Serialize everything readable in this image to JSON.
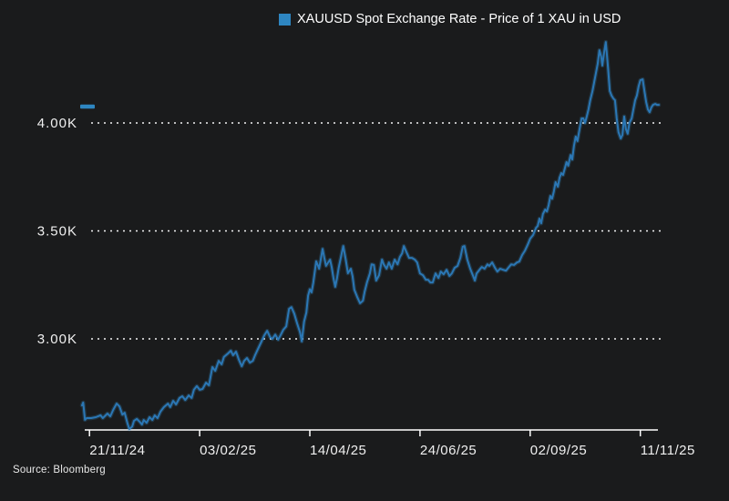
{
  "legend": {
    "label": "XAUUSD Spot Exchange Rate - Price of 1 XAU in USD",
    "swatch_color": "#2e86c1"
  },
  "source": {
    "text": "Source: Bloomberg"
  },
  "colors": {
    "background": "#1a1b1c",
    "text": "#f5f5f5",
    "line": "#2b77b5",
    "line_glow": "#3d9bd9",
    "axis": "#ffffff",
    "grid": "#ffffff",
    "marker": "#2e86c1"
  },
  "chart_data": {
    "type": "line",
    "title": "XAUUSD Spot Exchange Rate - Price of 1 XAU in USD",
    "xlabel": "",
    "ylabel": "",
    "grid": "horizontal-dotted",
    "legend_position": "top-center",
    "ylim": [
      2578,
      4390
    ],
    "y_ticks": [
      {
        "label": "4.00K",
        "value": 4000
      },
      {
        "label": "3.50K",
        "value": 3500
      },
      {
        "label": "3.00K",
        "value": 3000
      }
    ],
    "x_ticks": [
      {
        "label": "21/11/24",
        "pos": 0.013
      },
      {
        "label": "03/02/25",
        "pos": 0.204
      },
      {
        "label": "14/04/25",
        "pos": 0.395
      },
      {
        "label": "24/06/25",
        "pos": 0.586
      },
      {
        "label": "02/09/25",
        "pos": 0.777
      },
      {
        "label": "11/11/25",
        "pos": 0.968
      }
    ],
    "last_price_marker": 4076,
    "series": [
      {
        "name": "XAUUSD",
        "points": [
          [
            0,
            2692
          ],
          [
            0.002,
            2705
          ],
          [
            0.005,
            2625
          ],
          [
            0.008,
            2633
          ],
          [
            0.016,
            2633
          ],
          [
            0.024,
            2637
          ],
          [
            0.032,
            2646
          ],
          [
            0.036,
            2633
          ],
          [
            0.044,
            2654
          ],
          [
            0.049,
            2641
          ],
          [
            0.054,
            2671
          ],
          [
            0.06,
            2700
          ],
          [
            0.065,
            2687
          ],
          [
            0.07,
            2649
          ],
          [
            0.074,
            2658
          ],
          [
            0.079,
            2607
          ],
          [
            0.082,
            2582
          ],
          [
            0.087,
            2594
          ],
          [
            0.09,
            2620
          ],
          [
            0.095,
            2629
          ],
          [
            0.1,
            2616
          ],
          [
            0.104,
            2603
          ],
          [
            0.107,
            2624
          ],
          [
            0.112,
            2611
          ],
          [
            0.117,
            2637
          ],
          [
            0.122,
            2624
          ],
          [
            0.126,
            2646
          ],
          [
            0.131,
            2633
          ],
          [
            0.136,
            2663
          ],
          [
            0.142,
            2684
          ],
          [
            0.149,
            2700
          ],
          [
            0.153,
            2684
          ],
          [
            0.158,
            2713
          ],
          [
            0.163,
            2696
          ],
          [
            0.169,
            2726
          ],
          [
            0.174,
            2734
          ],
          [
            0.179,
            2717
          ],
          [
            0.185,
            2738
          ],
          [
            0.19,
            2726
          ],
          [
            0.194,
            2764
          ],
          [
            0.199,
            2781
          ],
          [
            0.204,
            2764
          ],
          [
            0.209,
            2768
          ],
          [
            0.215,
            2797
          ],
          [
            0.22,
            2785
          ],
          [
            0.226,
            2869
          ],
          [
            0.231,
            2852
          ],
          [
            0.237,
            2898
          ],
          [
            0.242,
            2882
          ],
          [
            0.246,
            2916
          ],
          [
            0.253,
            2932
          ],
          [
            0.258,
            2945
          ],
          [
            0.262,
            2924
          ],
          [
            0.267,
            2941
          ],
          [
            0.272,
            2903
          ],
          [
            0.277,
            2873
          ],
          [
            0.281,
            2898
          ],
          [
            0.286,
            2911
          ],
          [
            0.291,
            2890
          ],
          [
            0.296,
            2898
          ],
          [
            0.3,
            2924
          ],
          [
            0.305,
            2953
          ],
          [
            0.311,
            2987
          ],
          [
            0.316,
            3016
          ],
          [
            0.321,
            3037
          ],
          [
            0.326,
            3008
          ],
          [
            0.33,
            3000
          ],
          [
            0.335,
            3020
          ],
          [
            0.34,
            2996
          ],
          [
            0.344,
            3016
          ],
          [
            0.349,
            3042
          ],
          [
            0.354,
            3058
          ],
          [
            0.359,
            3139
          ],
          [
            0.363,
            3147
          ],
          [
            0.368,
            3117
          ],
          [
            0.373,
            3071
          ],
          [
            0.378,
            3030
          ],
          [
            0.381,
            2988
          ],
          [
            0.385,
            3080
          ],
          [
            0.389,
            3122
          ],
          [
            0.392,
            3200
          ],
          [
            0.395,
            3230
          ],
          [
            0.398,
            3215
          ],
          [
            0.401,
            3260
          ],
          [
            0.406,
            3359
          ],
          [
            0.409,
            3340
          ],
          [
            0.411,
            3325
          ],
          [
            0.414,
            3370
          ],
          [
            0.417,
            3417
          ],
          [
            0.42,
            3375
          ],
          [
            0.423,
            3338
          ],
          [
            0.427,
            3355
          ],
          [
            0.43,
            3367
          ],
          [
            0.433,
            3330
          ],
          [
            0.436,
            3280
          ],
          [
            0.439,
            3241
          ],
          [
            0.442,
            3280
          ],
          [
            0.445,
            3330
          ],
          [
            0.449,
            3380
          ],
          [
            0.453,
            3430
          ],
          [
            0.457,
            3370
          ],
          [
            0.461,
            3304
          ],
          [
            0.466,
            3325
          ],
          [
            0.469,
            3290
          ],
          [
            0.472,
            3228
          ],
          [
            0.477,
            3195
          ],
          [
            0.482,
            3165
          ],
          [
            0.487,
            3177
          ],
          [
            0.49,
            3219
          ],
          [
            0.494,
            3261
          ],
          [
            0.499,
            3303
          ],
          [
            0.502,
            3345
          ],
          [
            0.506,
            3342
          ],
          [
            0.51,
            3270
          ],
          [
            0.515,
            3295
          ],
          [
            0.52,
            3367
          ],
          [
            0.523,
            3345
          ],
          [
            0.528,
            3325
          ],
          [
            0.532,
            3354
          ],
          [
            0.537,
            3325
          ],
          [
            0.542,
            3367
          ],
          [
            0.547,
            3345
          ],
          [
            0.551,
            3379
          ],
          [
            0.555,
            3396
          ],
          [
            0.558,
            3430
          ],
          [
            0.562,
            3405
          ],
          [
            0.567,
            3375
          ],
          [
            0.572,
            3375
          ],
          [
            0.577,
            3367
          ],
          [
            0.581,
            3354
          ],
          [
            0.586,
            3303
          ],
          [
            0.591,
            3295
          ],
          [
            0.596,
            3274
          ],
          [
            0.6,
            3274
          ],
          [
            0.604,
            3261
          ],
          [
            0.608,
            3261
          ],
          [
            0.613,
            3303
          ],
          [
            0.618,
            3282
          ],
          [
            0.622,
            3312
          ],
          [
            0.627,
            3299
          ],
          [
            0.632,
            3320
          ],
          [
            0.637,
            3291
          ],
          [
            0.641,
            3303
          ],
          [
            0.646,
            3329
          ],
          [
            0.651,
            3338
          ],
          [
            0.656,
            3375
          ],
          [
            0.66,
            3427
          ],
          [
            0.663,
            3430
          ],
          [
            0.668,
            3367
          ],
          [
            0.673,
            3325
          ],
          [
            0.678,
            3291
          ],
          [
            0.681,
            3270
          ],
          [
            0.684,
            3303
          ],
          [
            0.689,
            3320
          ],
          [
            0.693,
            3333
          ],
          [
            0.698,
            3325
          ],
          [
            0.703,
            3345
          ],
          [
            0.706,
            3338
          ],
          [
            0.711,
            3354
          ],
          [
            0.716,
            3329
          ],
          [
            0.72,
            3312
          ],
          [
            0.725,
            3325
          ],
          [
            0.73,
            3320
          ],
          [
            0.735,
            3316
          ],
          [
            0.739,
            3329
          ],
          [
            0.744,
            3345
          ],
          [
            0.749,
            3342
          ],
          [
            0.754,
            3354
          ],
          [
            0.758,
            3358
          ],
          [
            0.763,
            3388
          ],
          [
            0.768,
            3409
          ],
          [
            0.773,
            3438
          ],
          [
            0.777,
            3464
          ],
          [
            0.782,
            3481
          ],
          [
            0.787,
            3514
          ],
          [
            0.79,
            3523
          ],
          [
            0.793,
            3557
          ],
          [
            0.796,
            3535
          ],
          [
            0.799,
            3578
          ],
          [
            0.803,
            3599
          ],
          [
            0.806,
            3590
          ],
          [
            0.809,
            3620
          ],
          [
            0.812,
            3662
          ],
          [
            0.815,
            3649
          ],
          [
            0.818,
            3683
          ],
          [
            0.821,
            3726
          ],
          [
            0.825,
            3705
          ],
          [
            0.828,
            3747
          ],
          [
            0.831,
            3768
          ],
          [
            0.834,
            3759
          ],
          [
            0.837,
            3789
          ],
          [
            0.84,
            3819
          ],
          [
            0.843,
            3802
          ],
          [
            0.847,
            3852
          ],
          [
            0.85,
            3831
          ],
          [
            0.853,
            3895
          ],
          [
            0.856,
            3937
          ],
          [
            0.859,
            3916
          ],
          [
            0.863,
            3979
          ],
          [
            0.866,
            4021
          ],
          [
            0.869,
            4021
          ],
          [
            0.872,
            4000
          ],
          [
            0.875,
            4030
          ],
          [
            0.878,
            4063
          ],
          [
            0.881,
            4105
          ],
          [
            0.885,
            4148
          ],
          [
            0.888,
            4190
          ],
          [
            0.891,
            4232
          ],
          [
            0.894,
            4274
          ],
          [
            0.897,
            4337
          ],
          [
            0.9,
            4308
          ],
          [
            0.902,
            4266
          ],
          [
            0.905,
            4325
          ],
          [
            0.908,
            4375
          ],
          [
            0.912,
            4253
          ],
          [
            0.915,
            4148
          ],
          [
            0.918,
            4127
          ],
          [
            0.921,
            4114
          ],
          [
            0.924,
            4105
          ],
          [
            0.927,
            4021
          ],
          [
            0.93,
            3958
          ],
          [
            0.934,
            3928
          ],
          [
            0.937,
            3945
          ],
          [
            0.94,
            4030
          ],
          [
            0.943,
            3971
          ],
          [
            0.946,
            3950
          ],
          [
            0.949,
            4000
          ],
          [
            0.953,
            4021
          ],
          [
            0.956,
            4063
          ],
          [
            0.959,
            4105
          ],
          [
            0.962,
            4127
          ],
          [
            0.965,
            4169
          ],
          [
            0.968,
            4198
          ],
          [
            0.972,
            4202
          ],
          [
            0.975,
            4148
          ],
          [
            0.978,
            4097
          ],
          [
            0.981,
            4063
          ],
          [
            0.984,
            4050
          ],
          [
            0.987,
            4072
          ],
          [
            0.99,
            4084
          ],
          [
            0.994,
            4088
          ],
          [
            0.997,
            4084
          ],
          [
            1,
            4084
          ]
        ]
      }
    ]
  }
}
